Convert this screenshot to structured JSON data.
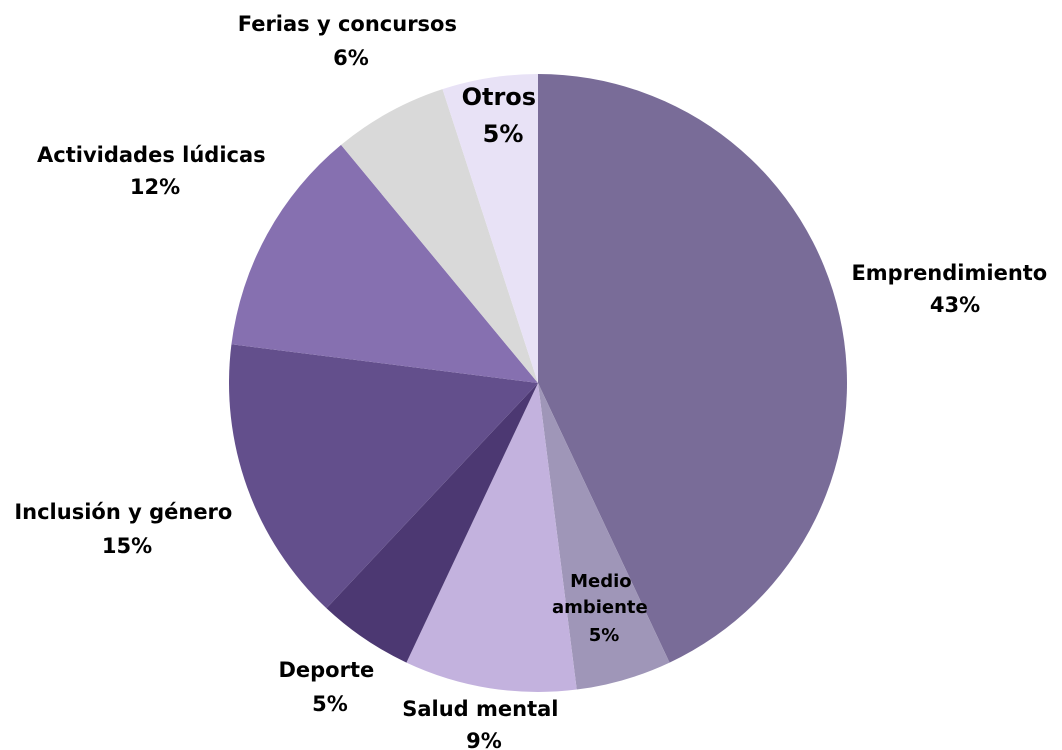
{
  "chart_data": {
    "type": "pie",
    "title": "",
    "slices": [
      {
        "label": "Emprendimiento",
        "value": 43,
        "value_label": "43%",
        "color": "#796C98"
      },
      {
        "label": "Medio ambiente",
        "value": 5,
        "value_label": "5%",
        "color": "#9F96B8"
      },
      {
        "label": "Salud mental",
        "value": 9,
        "value_label": "9%",
        "color": "#C3B2DE"
      },
      {
        "label": "Deporte",
        "value": 5,
        "value_label": "5%",
        "color": "#4C3872"
      },
      {
        "label": "Inclusión y género",
        "value": 15,
        "value_label": "15%",
        "color": "#634F8C"
      },
      {
        "label": "Actividades lúdicas",
        "value": 12,
        "value_label": "12%",
        "color": "#8670B0"
      },
      {
        "label": "Ferias y concursos",
        "value": 6,
        "value_label": "6%",
        "color": "#D9D9D9"
      },
      {
        "label": "Otros",
        "value": 5,
        "value_label": "5%",
        "color": "#E8E2F6"
      }
    ]
  }
}
